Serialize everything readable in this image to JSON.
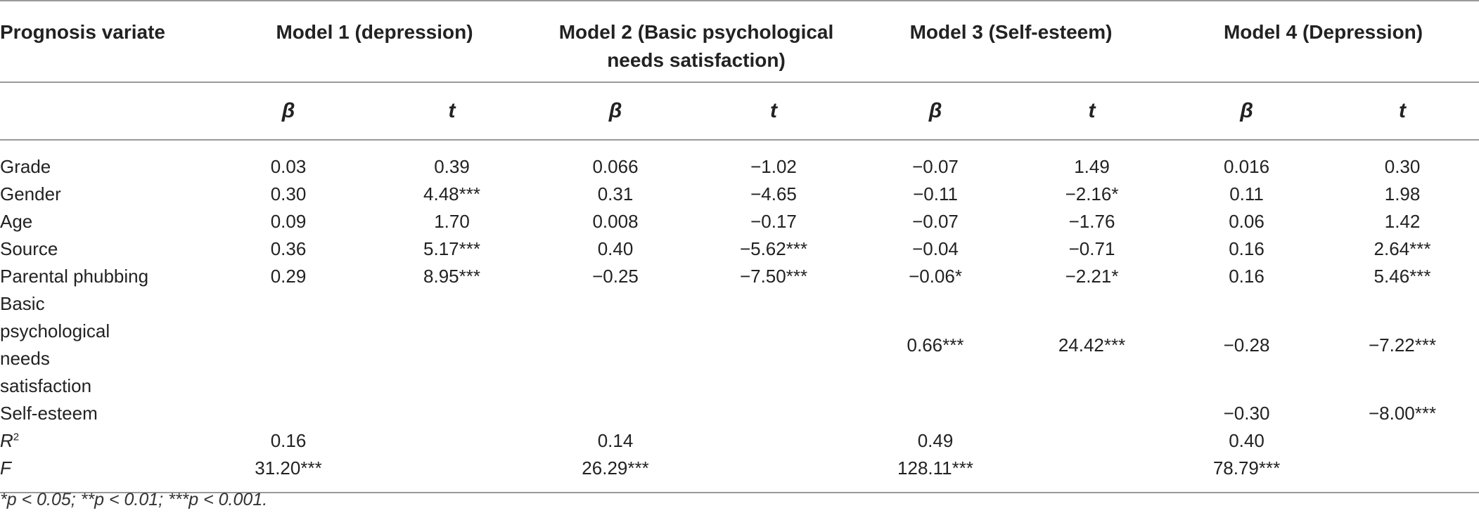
{
  "header": {
    "col0": "Prognosis variate",
    "model1": "Model 1 (depression)",
    "model2": "Model 2 (Basic psychological needs satisfaction)",
    "model3": "Model 3 (Self-esteem)",
    "model4": "Model 4 (Depression)"
  },
  "subheader": {
    "beta": "β",
    "t": "t"
  },
  "rows": {
    "grade": {
      "label": "Grade",
      "m1b": "0.03",
      "m1t": "0.39",
      "m2b": "0.066",
      "m2t": "−1.02",
      "m3b": "−0.07",
      "m3t": "1.49",
      "m4b": "0.016",
      "m4t": "0.30"
    },
    "gender": {
      "label": "Gender",
      "m1b": "0.30",
      "m1t": "4.48***",
      "m2b": "0.31",
      "m2t": "−4.65",
      "m3b": "−0.11",
      "m3t": "−2.16*",
      "m4b": "0.11",
      "m4t": "1.98"
    },
    "age": {
      "label": "Age",
      "m1b": "0.09",
      "m1t": "1.70",
      "m2b": "0.008",
      "m2t": "−0.17",
      "m3b": "−0.07",
      "m3t": "−1.76",
      "m4b": "0.06",
      "m4t": "1.42"
    },
    "source": {
      "label": "Source",
      "m1b": "0.36",
      "m1t": "5.17***",
      "m2b": "0.40",
      "m2t": "−5.62***",
      "m3b": "−0.04",
      "m3t": "−0.71",
      "m4b": "0.16",
      "m4t": "2.64***"
    },
    "phubbing": {
      "label": "Parental phubbing",
      "m1b": "0.29",
      "m1t": "8.95***",
      "m2b": "−0.25",
      "m2t": "−7.50***",
      "m3b": "−0.06*",
      "m3t": "−2.21*",
      "m4b": "0.16",
      "m4t": "5.46***"
    },
    "bpns": {
      "label": "Basic psychological needs satisfaction",
      "m1b": "",
      "m1t": "",
      "m2b": "",
      "m2t": "",
      "m3b": "0.66***",
      "m3t": "24.42***",
      "m4b": "−0.28",
      "m4t": "−7.22***"
    },
    "selfesteem": {
      "label": "Self-esteem",
      "m1b": "",
      "m1t": "",
      "m2b": "",
      "m2t": "",
      "m3b": "",
      "m3t": "",
      "m4b": "−0.30",
      "m4t": "−8.00***"
    },
    "r2": {
      "label": "R",
      "sup": "2",
      "m1b": "0.16",
      "m2b": "0.14",
      "m3b": "0.49",
      "m4b": "0.40"
    },
    "f": {
      "label": "F",
      "m1b": "31.20***",
      "m2b": "26.29***",
      "m3b": "128.11***",
      "m4b": "78.79***"
    }
  },
  "footnote": "*p < 0.05; **p < 0.01; ***p < 0.001."
}
